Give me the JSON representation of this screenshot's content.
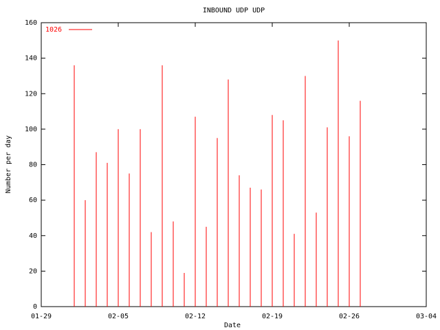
{
  "chart_data": {
    "type": "impulse",
    "title": "INBOUND UDP UDP",
    "xlabel": "Date",
    "ylabel": "Number per day",
    "x": [
      "02-01",
      "02-02",
      "02-03",
      "02-04",
      "02-05",
      "02-06",
      "02-07",
      "02-08",
      "02-09",
      "02-10",
      "02-11",
      "02-12",
      "02-13",
      "02-14",
      "02-15",
      "02-16",
      "02-17",
      "02-18",
      "02-19",
      "02-20",
      "02-21",
      "02-22",
      "02-23",
      "02-24",
      "02-25",
      "02-26",
      "02-27"
    ],
    "series": [
      {
        "name": "1026",
        "color": "#ff0000",
        "values": [
          136,
          60,
          87,
          81,
          100,
          75,
          100,
          42,
          136,
          48,
          19,
          107,
          45,
          95,
          128,
          74,
          67,
          66,
          108,
          105,
          41,
          130,
          53,
          101,
          150,
          96,
          116
        ]
      }
    ],
    "xlim": [
      "01-29",
      "03-04"
    ],
    "xticks": [
      "01-29",
      "02-05",
      "02-12",
      "02-19",
      "02-26",
      "03-04"
    ],
    "ylim": [
      0,
      160
    ],
    "yticks": [
      0,
      20,
      40,
      60,
      80,
      100,
      120,
      140,
      160
    ],
    "legend": "top-left"
  }
}
